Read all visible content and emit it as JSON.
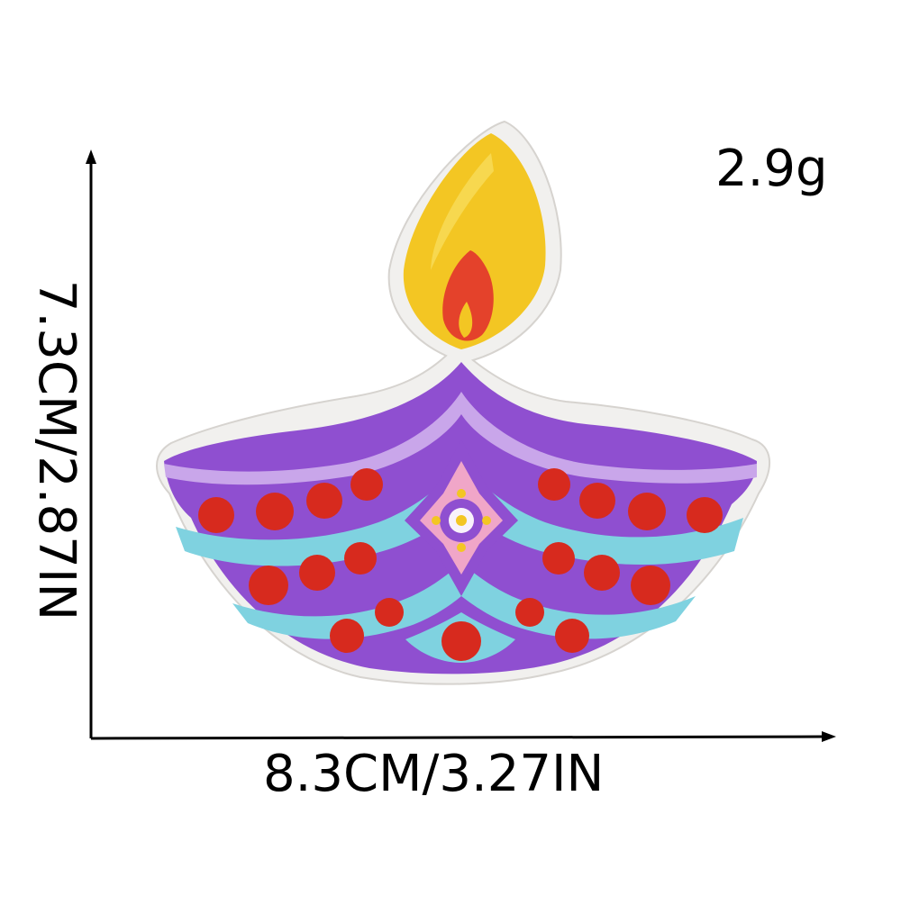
{
  "measurements": {
    "weight": "2.9g",
    "width": "8.3CM/3.27IN",
    "height": "7.3CM/2.87IN"
  },
  "patch": {
    "subject": "diya-oil-lamp-patch",
    "colors": {
      "felt_border": "#f1f0ee",
      "flame_outer": "#f3c623",
      "flame_inner": "#e4422b",
      "bowl_purple": "#8f4fd0",
      "bowl_lavender": "#c9a6ea",
      "band_turquoise": "#7fd2e0",
      "dot_red": "#d72a1e",
      "flower_pink": "#f0a6c8"
    }
  }
}
